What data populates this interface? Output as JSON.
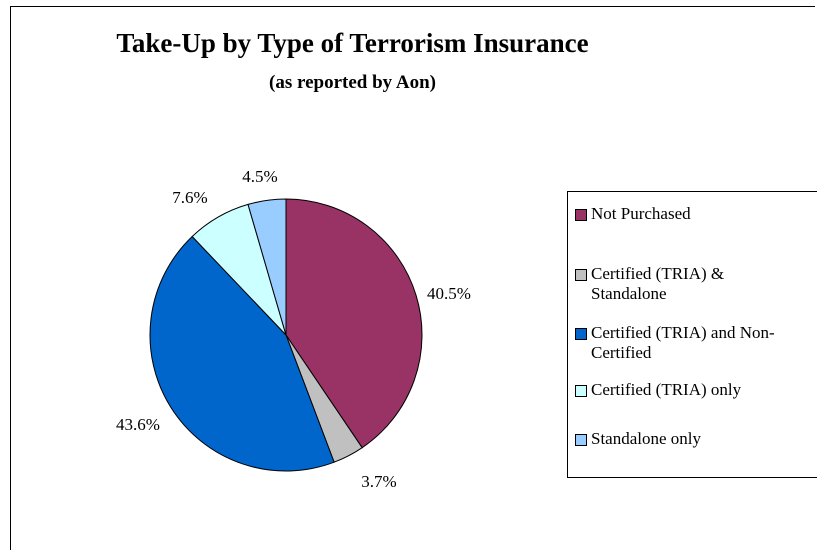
{
  "chart_data": {
    "type": "pie",
    "title": "Take-Up by Type of Terrorism Insurance",
    "subtitle": "(as reported by Aon)",
    "legend_position": "right",
    "slices": [
      {
        "name": "Not Purchased",
        "value": 40.5,
        "label": "40.5%",
        "color": "#993366"
      },
      {
        "name": "Certified (TRIA) & Standalone",
        "value": 3.7,
        "label": "3.7%",
        "color": "#C0C0C0"
      },
      {
        "name": "Certified (TRIA) and Non-Certified",
        "value": 43.6,
        "label": "43.6%",
        "color": "#0066CC"
      },
      {
        "name": "Certified (TRIA) only",
        "value": 7.6,
        "label": "7.6%",
        "color": "#CCFFFF"
      },
      {
        "name": "Standalone only",
        "value": 4.5,
        "label": "4.5%",
        "color": "#99CCFF"
      }
    ]
  },
  "legend": {
    "items": [
      {
        "line1": "Not Purchased",
        "line2": ""
      },
      {
        "line1": "Certified (TRIA) &",
        "line2": "Standalone"
      },
      {
        "line1": "Certified (TRIA) and Non-",
        "line2": "Certified"
      },
      {
        "line1": "Certified (TRIA) only",
        "line2": ""
      },
      {
        "line1": "Standalone only",
        "line2": ""
      }
    ]
  }
}
